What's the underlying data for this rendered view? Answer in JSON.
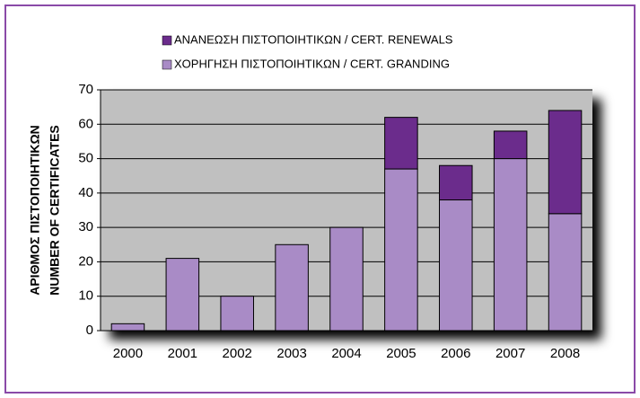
{
  "chart_data": {
    "type": "stacked_bar",
    "categories": [
      "2000",
      "2001",
      "2002",
      "2003",
      "2004",
      "2005",
      "2006",
      "2007",
      "2008"
    ],
    "series": [
      {
        "name": "ΑΝΑΝΕΩΣΗ ΠΙΣΤΟΠΟΙΗΤΙΚΩΝ / CERT. RENEWALS",
        "color": "#6b2c8c",
        "values": [
          0,
          0,
          0,
          0,
          0,
          15,
          10,
          8,
          30
        ]
      },
      {
        "name": "ΧΟΡΗΓΗΣΗ ΠΙΣΤΟΠΟΙΗΤΙΚΩΝ / CERT. GRANDING",
        "color": "#a98bc6",
        "values": [
          2,
          21,
          10,
          25,
          30,
          47,
          38,
          50,
          34
        ]
      }
    ],
    "y_label": [
      "ΑΡΙΘΜΟΣ ΠΙΣΤΟΠΟΙΗΤΙΚΩΝ",
      "NUMBER OF CERTIFICATES"
    ],
    "ylim": [
      0,
      70
    ],
    "yticks": [
      0,
      10,
      20,
      30,
      40,
      50,
      60,
      70
    ],
    "grid": true
  }
}
